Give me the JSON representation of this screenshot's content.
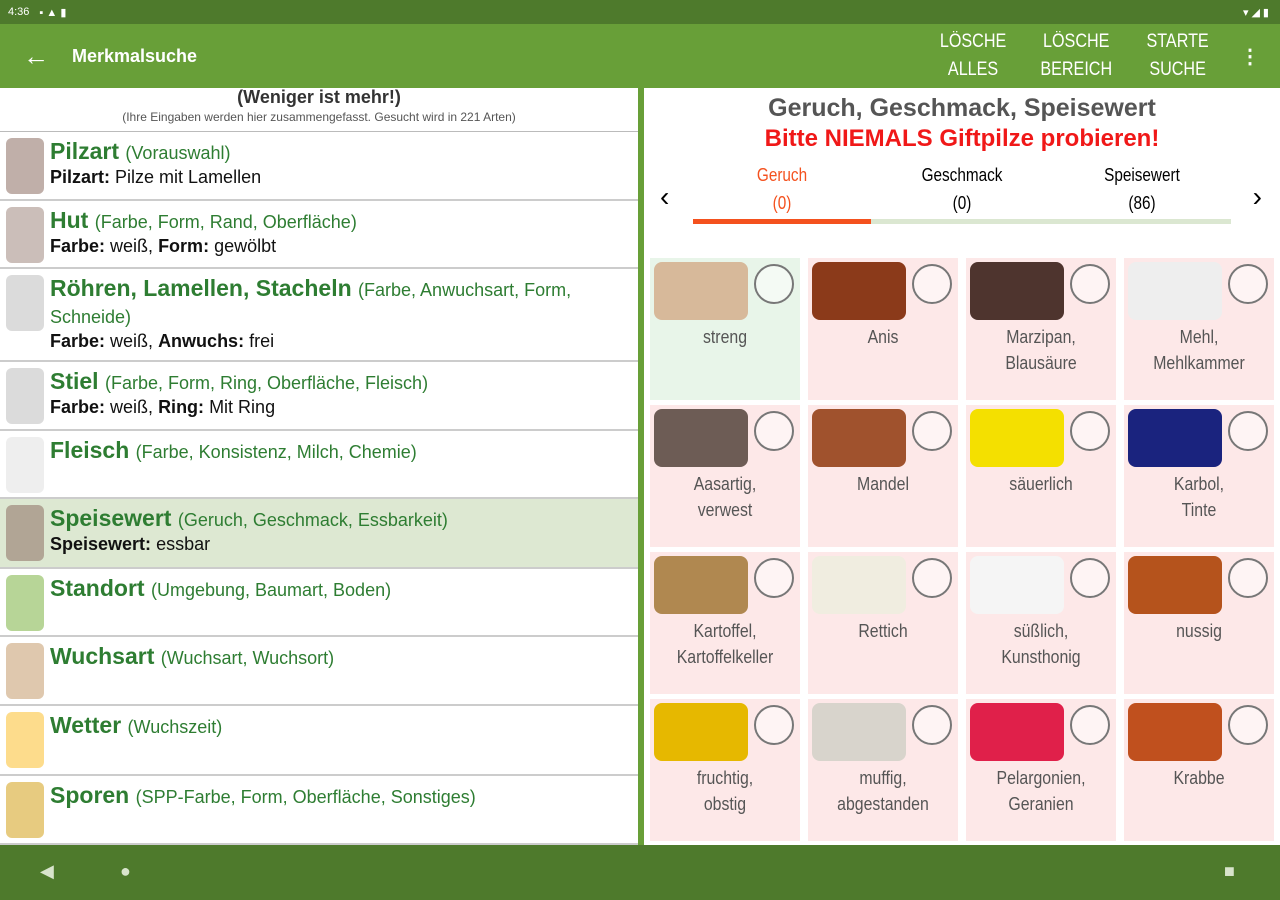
{
  "status": {
    "time": "4:36",
    "icons_left": [
      "sim-icon",
      "warning-icon",
      "sd-icon"
    ],
    "icons_right": "▾◢▮"
  },
  "toolbar": {
    "title": "Merkmalsuche",
    "buttons": [
      [
        "LÖSCHE",
        "ALLES"
      ],
      [
        "LÖSCHE",
        "BEREICH"
      ],
      [
        "STARTE",
        "SUCHE"
      ]
    ],
    "more": "⋮",
    "back": "←"
  },
  "left": {
    "header": "(Weniger ist mehr!)",
    "subheader": "(Ihre Eingaben werden hier zusammengefasst. Gesucht wird in 221 Arten)",
    "rows": [
      {
        "title": "Pilzart",
        "sub": "(Vorauswahl)",
        "lines": [
          [
            "Pilzart:",
            "Pilze mit Lamellen"
          ]
        ],
        "color": "#8d6e63"
      },
      {
        "title": "Hut",
        "sub": "(Farbe, Form, Rand, Oberfläche)",
        "lines": [
          [
            "Farbe:",
            "weiß,"
          ],
          [
            "Form:",
            "gewölbt"
          ]
        ],
        "color": "#a1887f"
      },
      {
        "title": "Röhren, Lamellen, Stacheln",
        "sub": "(Farbe, Anwuchsart, Form, Schneide)",
        "lines": [
          [
            "Farbe:",
            "weiß,"
          ],
          [
            "Anwuchs:",
            "frei"
          ]
        ],
        "color": "#bdbdbd"
      },
      {
        "title": "Stiel",
        "sub": "(Farbe, Form, Ring, Oberfläche, Fleisch)",
        "lines": [
          [
            "Farbe:",
            "weiß,"
          ],
          [
            "Ring:",
            "Mit Ring"
          ]
        ],
        "color": "#bdbdbd"
      },
      {
        "title": "Fleisch",
        "sub": "(Farbe, Konsistenz, Milch, Chemie)",
        "lines": [],
        "color": "#e0e0e0"
      },
      {
        "title": "Speisewert",
        "sub": "(Geruch, Geschmack, Essbarkeit)",
        "lines": [
          [
            "Speisewert:",
            "essbar"
          ]
        ],
        "color": "#8d6e63",
        "selected": true
      },
      {
        "title": "Standort",
        "sub": "(Umgebung, Baumart, Boden)",
        "lines": [],
        "color": "#7cb342"
      },
      {
        "title": "Wuchsart",
        "sub": "(Wuchsart, Wuchsort)",
        "lines": [],
        "color": "#c49a6c"
      },
      {
        "title": "Wetter",
        "sub": "(Wuchszeit)",
        "lines": [],
        "color": "#fbc02d"
      },
      {
        "title": "Sporen",
        "sub": "(SPP-Farbe, Form, Oberfläche, Sonstiges)",
        "lines": [],
        "color": "#d4a017"
      }
    ]
  },
  "right": {
    "title": "Geruch, Geschmack, Speisewert",
    "warning": "Bitte NIEMALS Giftpilze probieren!",
    "tabs": [
      {
        "label": "Geruch",
        "count": "(0)",
        "active": true
      },
      {
        "label": "Geschmack",
        "count": "(0)"
      },
      {
        "label": "Speisewert",
        "count": "(86)"
      }
    ],
    "progress": 0.33,
    "accent": "#f4511e",
    "items": [
      {
        "label": "streng",
        "color": "#d7b99a",
        "green": true
      },
      {
        "label": "Anis",
        "color": "#8b3a1a"
      },
      {
        "label": "Marzipan, Blausäure",
        "color": "#4e342e"
      },
      {
        "label": "Mehl, Mehlkammer",
        "color": "#eeeeee"
      },
      {
        "label": "Aasartig, verwest",
        "color": "#6d5c55"
      },
      {
        "label": "Mandel",
        "color": "#a0522d"
      },
      {
        "label": "säuerlich",
        "color": "#f4e000"
      },
      {
        "label": "Karbol, Tinte",
        "color": "#1a237e"
      },
      {
        "label": "Kartoffel, Kartoffelkeller",
        "color": "#b08850"
      },
      {
        "label": "Rettich",
        "color": "#f0ede0"
      },
      {
        "label": "süßlich, Kunsthonig",
        "color": "#f5f5f5"
      },
      {
        "label": "nussig",
        "color": "#b5531c"
      },
      {
        "label": "fruchtig, obstig",
        "color": "#e6b800"
      },
      {
        "label": "muffig, abgestanden",
        "color": "#d8d4cc"
      },
      {
        "label": "Pelargonien, Geranien",
        "color": "#e0204a"
      },
      {
        "label": "Krabbe",
        "color": "#c0501e"
      }
    ]
  },
  "nav": {
    "back": "◀",
    "home": "●",
    "recent": "■"
  }
}
